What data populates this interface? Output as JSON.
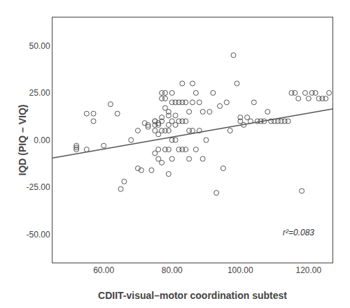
{
  "chart_data": {
    "type": "scatter",
    "xlabel": "CDIIT-visual–motor coordination subtest",
    "ylabel": "IQD (PIQ – VIQ)",
    "xlim": [
      45,
      127
    ],
    "ylim": [
      -65,
      65
    ],
    "xticks": [
      {
        "value": 60.0,
        "label": "60.00"
      },
      {
        "value": 80.0,
        "label": "80.00"
      },
      {
        "value": 100.0,
        "label": "100.00"
      },
      {
        "value": 120.0,
        "label": "120.00"
      }
    ],
    "yticks": [
      {
        "value": -50.0,
        "label": "-50.00"
      },
      {
        "value": -25.0,
        "label": "-25.00"
      },
      {
        "value": 0.0,
        "label": "0.00"
      },
      {
        "value": 25.0,
        "label": "25.00"
      },
      {
        "value": 50.0,
        "label": "50.00"
      }
    ],
    "grid": false,
    "series": [
      {
        "type": "scatter",
        "color": "#555555",
        "marker": "circle-open",
        "x": [
          52,
          52,
          52,
          55,
          55,
          57,
          57,
          60,
          62,
          64,
          65,
          66,
          68,
          70,
          70,
          71,
          72,
          73,
          73,
          74,
          75,
          75,
          75,
          75,
          75,
          76,
          76,
          76,
          76,
          76,
          77,
          77,
          77,
          77,
          77,
          77,
          78,
          78,
          78,
          78,
          78,
          79,
          79,
          79,
          79,
          79,
          79,
          80,
          80,
          80,
          80,
          80,
          81,
          81,
          81,
          81,
          82,
          82,
          82,
          83,
          83,
          83,
          83,
          84,
          84,
          84,
          85,
          85,
          85,
          86,
          86,
          86,
          87,
          87,
          88,
          88,
          89,
          89,
          90,
          91,
          92,
          93,
          94,
          95,
          96,
          97,
          98,
          99,
          100,
          100,
          101,
          102,
          103,
          104,
          105,
          106,
          107,
          108,
          109,
          110,
          111,
          112,
          113,
          114,
          115,
          116,
          117,
          118,
          119,
          120,
          121,
          122,
          123,
          124,
          125,
          126
        ],
        "values": [
          -3,
          -4,
          -5,
          14,
          -5,
          14,
          10,
          -3,
          19,
          14,
          -26,
          -22,
          0,
          -15,
          5,
          -16,
          9,
          8,
          7,
          -16,
          10,
          10,
          8,
          5,
          -7,
          9,
          8,
          3,
          -5,
          -10,
          25,
          22,
          12,
          10,
          5,
          -12,
          25,
          22,
          17,
          5,
          -5,
          15,
          13,
          8,
          5,
          -5,
          -18,
          25,
          20,
          10,
          -10,
          0,
          20,
          13,
          8,
          0,
          20,
          10,
          -5,
          30,
          20,
          10,
          -5,
          20,
          10,
          -5,
          15,
          5,
          -10,
          30,
          20,
          5,
          25,
          -5,
          20,
          5,
          15,
          -10,
          0,
          15,
          25,
          -28,
          18,
          -15,
          20,
          5,
          45,
          30,
          10,
          12,
          8,
          12,
          10,
          20,
          10,
          10,
          10,
          15,
          10,
          10,
          10,
          10,
          10,
          10,
          25,
          25,
          22,
          -27,
          25,
          22,
          25,
          25,
          22,
          22,
          22,
          25
        ]
      },
      {
        "type": "line",
        "color": "#555555",
        "line_style": "solid",
        "x": [
          45,
          127
        ],
        "values": [
          -9.5,
          16.5
        ]
      }
    ],
    "annotations": [
      {
        "text": "r²=0.083",
        "x": 122,
        "y": -49
      }
    ]
  }
}
